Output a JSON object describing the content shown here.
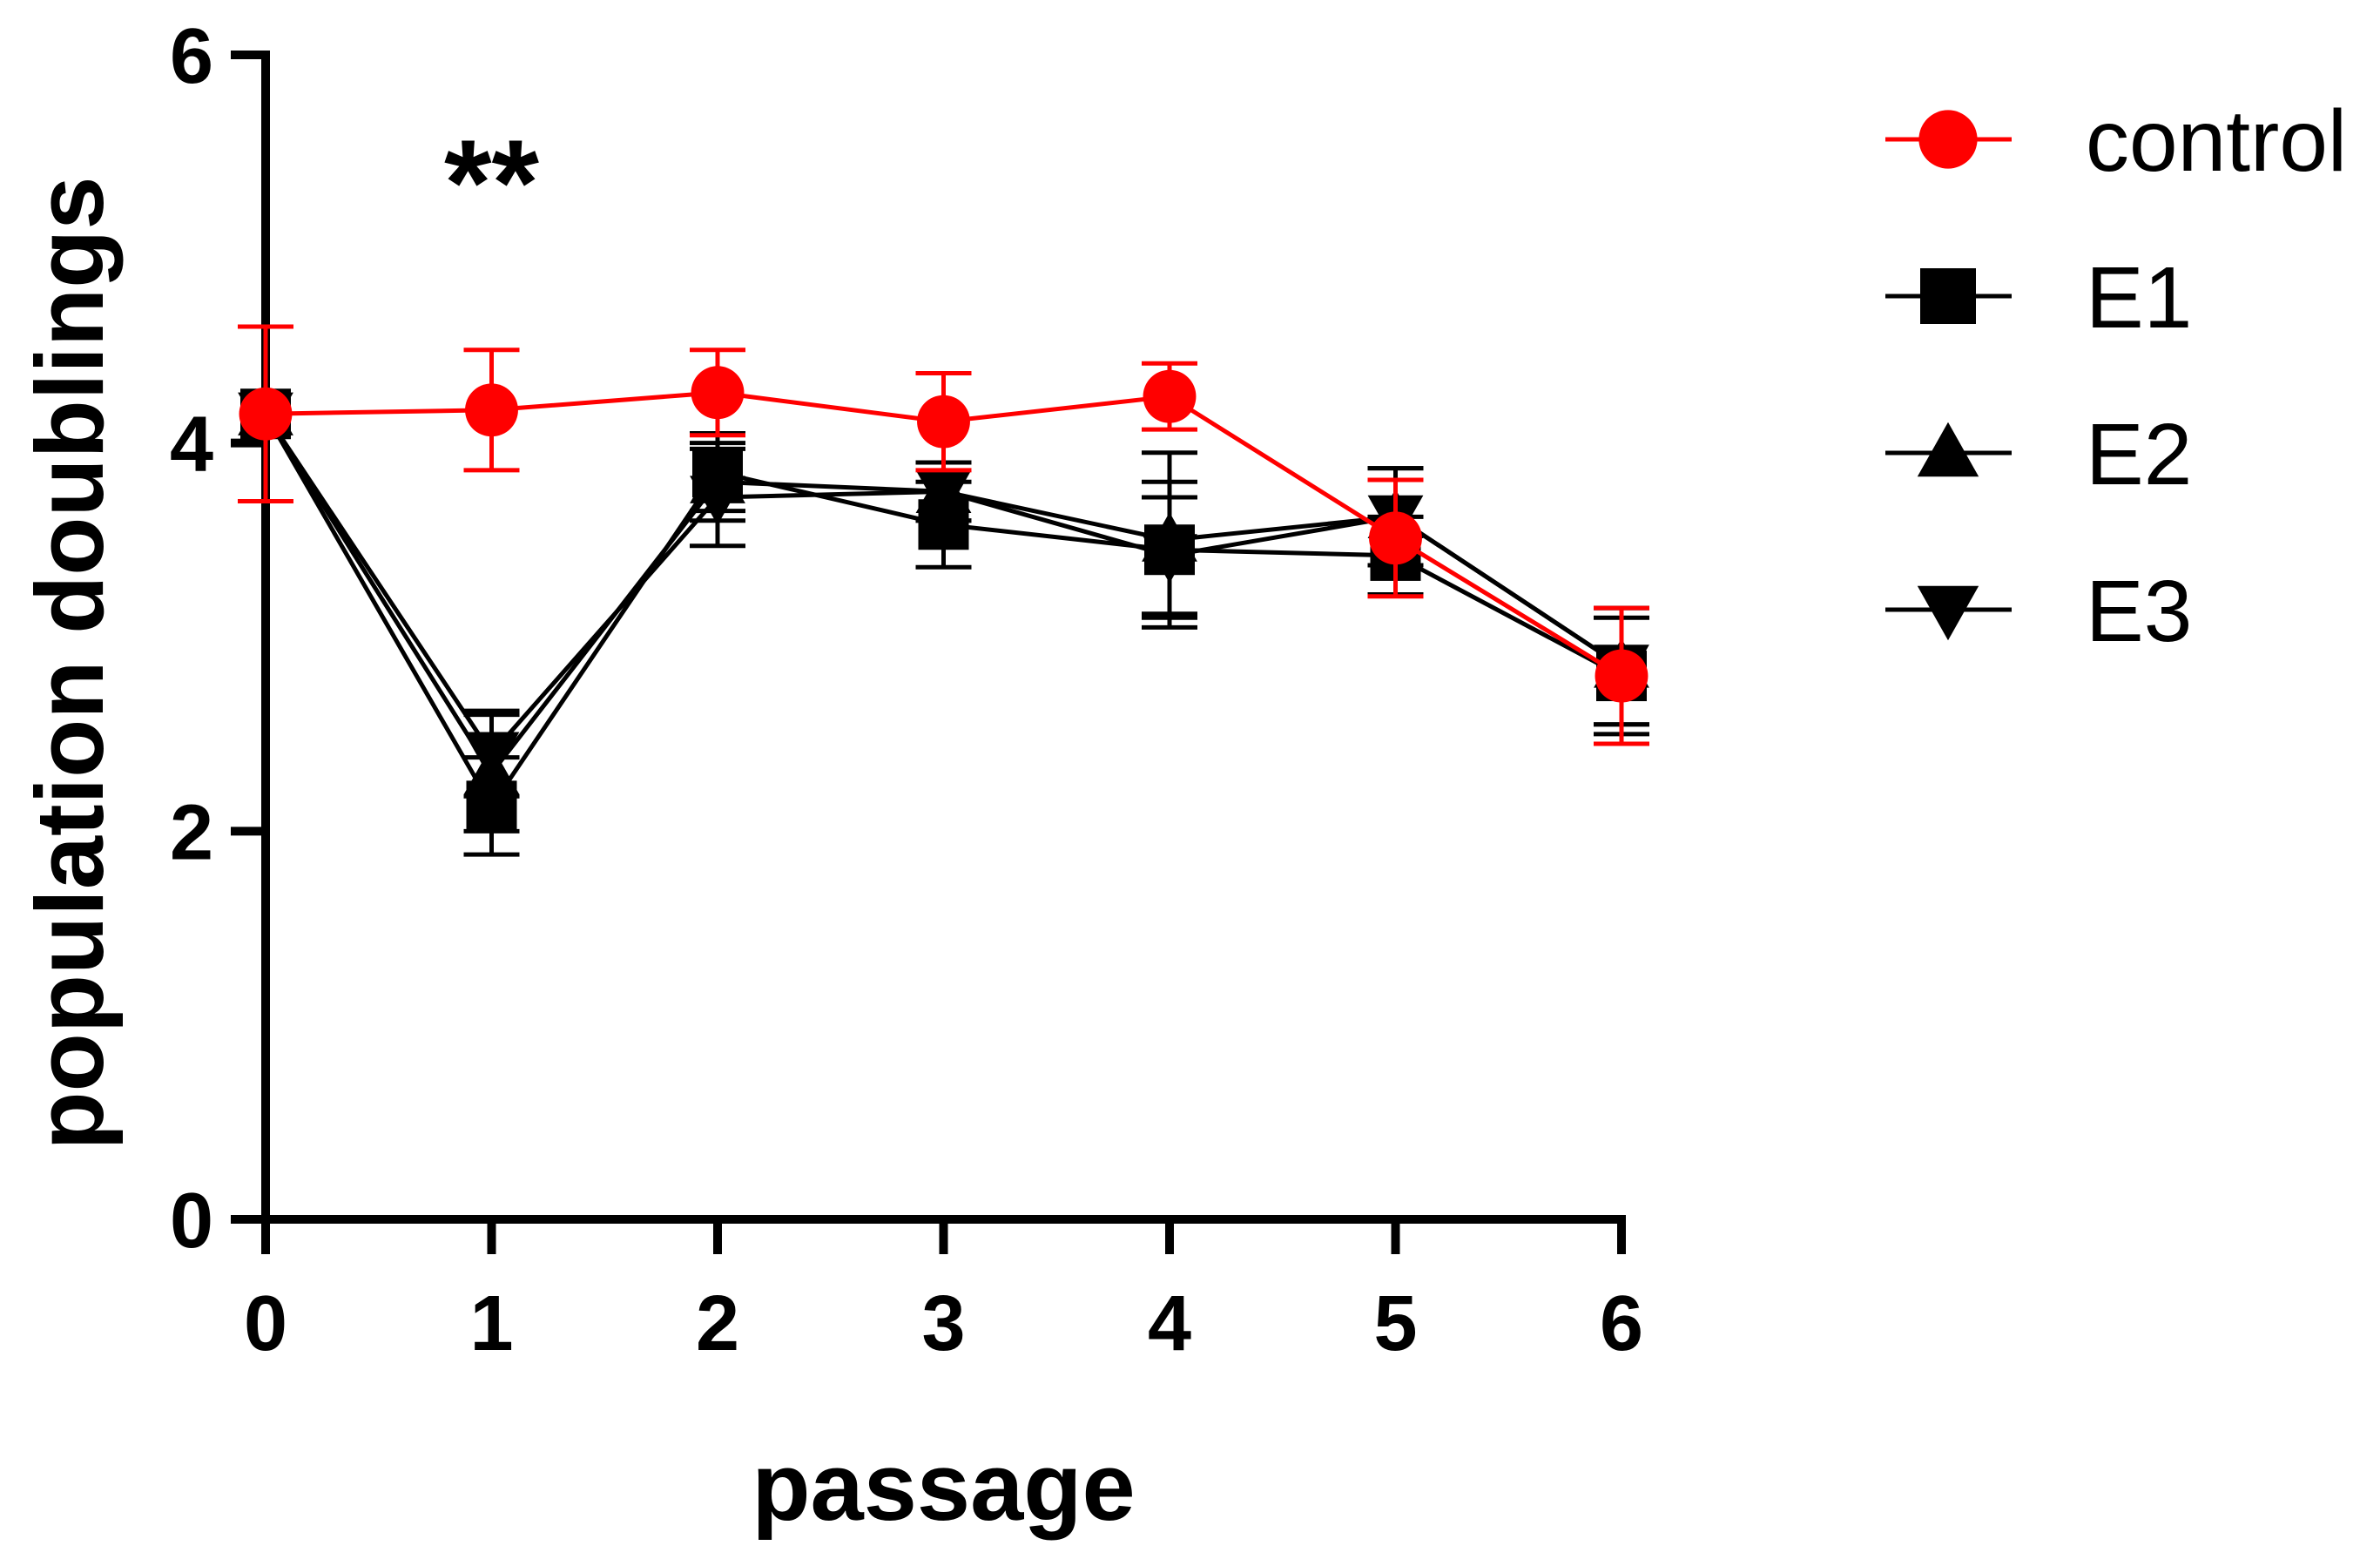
{
  "chart_data": {
    "type": "line",
    "title": "",
    "xlabel": "passage",
    "ylabel": "population doublings",
    "x": [
      0,
      1,
      2,
      3,
      4,
      5,
      6
    ],
    "x_ticks": [
      "0",
      "1",
      "2",
      "3",
      "4",
      "5",
      "6"
    ],
    "y_ticks": [
      "0",
      "2",
      "4",
      "6"
    ],
    "xlim": [
      0,
      6
    ],
    "ylim": [
      0,
      6
    ],
    "grid": false,
    "legend_position": "top-right",
    "annotations": [
      {
        "text": "**",
        "x": 1,
        "y": 5.35
      }
    ],
    "series": [
      {
        "name": "E1",
        "marker": "square",
        "color": "#000000",
        "values": [
          4.15,
          2.13,
          3.85,
          3.58,
          3.45,
          3.42,
          2.8
        ],
        "errors": [
          0.45,
          0.25,
          0.2,
          0.22,
          0.35,
          0.2,
          0.3
        ]
      },
      {
        "name": "E2",
        "marker": "triangle-up",
        "color": "#000000",
        "values": [
          4.15,
          2.3,
          3.8,
          3.75,
          3.5,
          3.62,
          2.85
        ],
        "errors": [
          0.45,
          0.3,
          0.2,
          0.15,
          0.45,
          0.25,
          0.3
        ]
      },
      {
        "name": "E3",
        "marker": "triangle-down",
        "color": "#000000",
        "values": [
          4.15,
          2.4,
          3.72,
          3.75,
          3.42,
          3.62,
          2.85
        ],
        "errors": [
          0.45,
          0.22,
          0.25,
          0.15,
          0.3,
          0.25,
          0.3
        ]
      },
      {
        "name": "control",
        "marker": "circle",
        "color": "#ff0000",
        "values": [
          4.15,
          4.17,
          4.26,
          4.11,
          4.24,
          3.51,
          2.8
        ],
        "errors": [
          0.45,
          0.31,
          0.22,
          0.25,
          0.17,
          0.3,
          0.35
        ]
      }
    ],
    "legend_order": [
      "control",
      "E1",
      "E2",
      "E3"
    ]
  }
}
